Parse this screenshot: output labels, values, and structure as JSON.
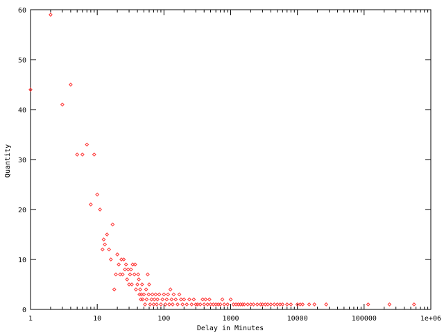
{
  "chart_data": {
    "type": "scatter",
    "title": "",
    "xlabel": "Delay in Minutes",
    "ylabel": "Quantity",
    "x_scale": "log",
    "xlim": [
      1,
      1000000
    ],
    "ylim": [
      0,
      60
    ],
    "grid": false,
    "legend": "none",
    "marker_color": "#ff3333",
    "x_tick_labels": [
      "1",
      "10",
      "100",
      "1000",
      "10000",
      "100000",
      "1e+06"
    ],
    "x_tick_values": [
      1,
      10,
      100,
      1000,
      10000,
      100000,
      1000000
    ],
    "y_tick_labels": [
      "0",
      "10",
      "20",
      "30",
      "40",
      "50",
      "60"
    ],
    "y_tick_values": [
      0,
      10,
      20,
      30,
      40,
      50,
      60
    ],
    "points": [
      [
        1,
        44
      ],
      [
        2,
        59
      ],
      [
        3,
        41
      ],
      [
        4,
        45
      ],
      [
        5,
        31
      ],
      [
        6,
        31
      ],
      [
        7,
        33
      ],
      [
        8,
        21
      ],
      [
        9,
        31
      ],
      [
        10,
        23
      ],
      [
        11,
        20
      ],
      [
        12,
        12
      ],
      [
        12.5,
        14
      ],
      [
        13,
        13
      ],
      [
        14,
        15
      ],
      [
        15,
        12
      ],
      [
        16,
        10
      ],
      [
        17,
        17
      ],
      [
        18,
        4
      ],
      [
        19,
        7
      ],
      [
        20,
        11
      ],
      [
        21,
        9
      ],
      [
        22,
        7
      ],
      [
        23,
        10
      ],
      [
        24,
        7
      ],
      [
        25,
        10
      ],
      [
        26,
        8
      ],
      [
        27,
        9
      ],
      [
        28,
        6
      ],
      [
        29,
        8
      ],
      [
        30,
        5
      ],
      [
        31,
        7
      ],
      [
        32,
        8
      ],
      [
        33,
        5
      ],
      [
        34,
        9
      ],
      [
        36,
        7
      ],
      [
        37,
        9
      ],
      [
        38,
        4
      ],
      [
        40,
        5
      ],
      [
        41,
        7
      ],
      [
        42,
        6
      ],
      [
        43,
        3
      ],
      [
        44,
        4
      ],
      [
        45,
        2
      ],
      [
        46,
        3
      ],
      [
        47,
        5
      ],
      [
        48,
        2
      ],
      [
        50,
        3
      ],
      [
        52,
        1
      ],
      [
        54,
        4
      ],
      [
        55,
        2
      ],
      [
        57,
        7
      ],
      [
        59,
        3
      ],
      [
        60,
        5
      ],
      [
        62,
        1
      ],
      [
        65,
        2
      ],
      [
        67,
        3
      ],
      [
        70,
        1
      ],
      [
        72,
        2
      ],
      [
        75,
        3
      ],
      [
        78,
        1
      ],
      [
        80,
        2
      ],
      [
        85,
        3
      ],
      [
        90,
        1
      ],
      [
        95,
        2
      ],
      [
        100,
        3
      ],
      [
        105,
        1
      ],
      [
        110,
        2
      ],
      [
        115,
        3
      ],
      [
        120,
        1
      ],
      [
        125,
        4
      ],
      [
        130,
        2
      ],
      [
        135,
        1
      ],
      [
        140,
        3
      ],
      [
        150,
        2
      ],
      [
        160,
        1
      ],
      [
        170,
        3
      ],
      [
        180,
        2
      ],
      [
        190,
        1
      ],
      [
        200,
        2
      ],
      [
        220,
        1
      ],
      [
        240,
        2
      ],
      [
        260,
        1
      ],
      [
        280,
        2
      ],
      [
        300,
        1
      ],
      [
        320,
        1
      ],
      [
        350,
        1
      ],
      [
        380,
        2
      ],
      [
        400,
        1
      ],
      [
        420,
        2
      ],
      [
        450,
        1
      ],
      [
        480,
        2
      ],
      [
        500,
        1
      ],
      [
        550,
        1
      ],
      [
        600,
        1
      ],
      [
        650,
        1
      ],
      [
        700,
        1
      ],
      [
        750,
        2
      ],
      [
        800,
        1
      ],
      [
        900,
        1
      ],
      [
        1000,
        2
      ],
      [
        1100,
        1
      ],
      [
        1200,
        1
      ],
      [
        1300,
        1
      ],
      [
        1400,
        1
      ],
      [
        1500,
        1
      ],
      [
        1600,
        1
      ],
      [
        1800,
        1
      ],
      [
        2000,
        1
      ],
      [
        2200,
        1
      ],
      [
        2500,
        1
      ],
      [
        2800,
        1
      ],
      [
        3000,
        1
      ],
      [
        3300,
        1
      ],
      [
        3600,
        1
      ],
      [
        4000,
        1
      ],
      [
        4500,
        1
      ],
      [
        5000,
        1
      ],
      [
        5500,
        1
      ],
      [
        6000,
        1
      ],
      [
        7000,
        1
      ],
      [
        8000,
        1
      ],
      [
        10000,
        1
      ],
      [
        11000,
        1
      ],
      [
        12000,
        1
      ],
      [
        15000,
        1
      ],
      [
        18000,
        1
      ],
      [
        27000,
        1
      ],
      [
        115000,
        1
      ],
      [
        240000,
        1
      ],
      [
        560000,
        1
      ]
    ]
  }
}
